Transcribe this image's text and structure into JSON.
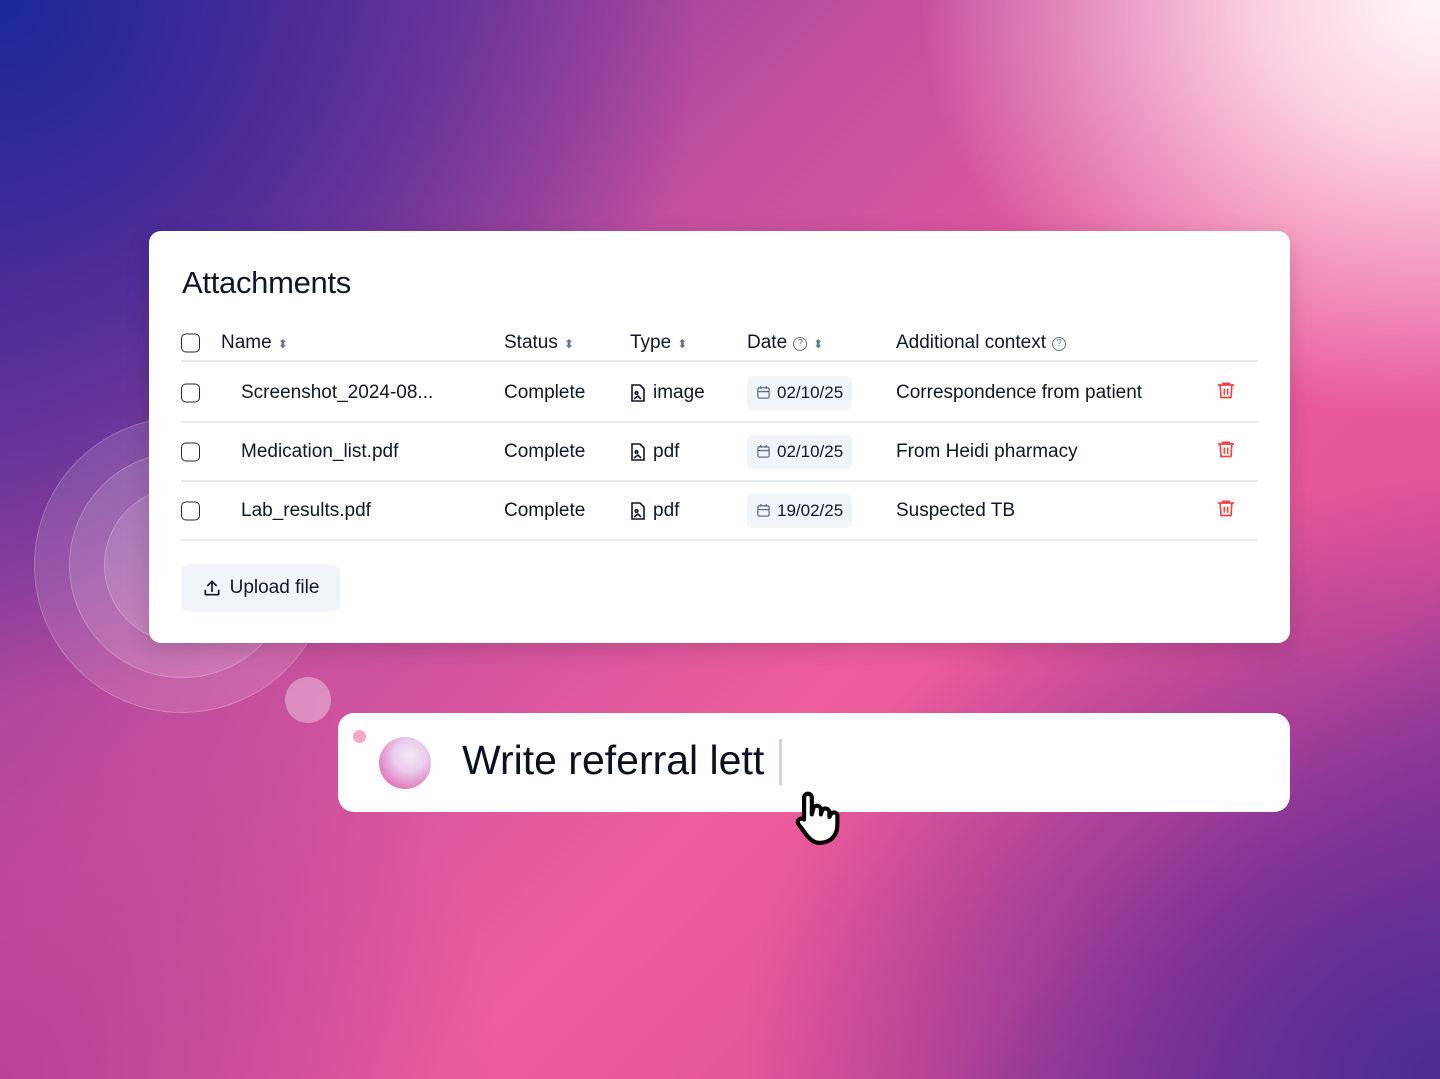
{
  "card": {
    "title": "Attachments",
    "headers": {
      "name": "Name",
      "status": "Status",
      "type": "Type",
      "date": "Date",
      "context": "Additional context"
    },
    "rows": [
      {
        "name": "Screenshot_2024-08...",
        "status": "Complete",
        "type": "image",
        "date": "02/10/25",
        "context": "Correspondence from patient"
      },
      {
        "name": "Medication_list.pdf",
        "status": "Complete",
        "type": "pdf",
        "date": "02/10/25",
        "context": "From Heidi pharmacy"
      },
      {
        "name": "Lab_results.pdf",
        "status": "Complete",
        "type": "pdf",
        "date": "19/02/25",
        "context": "Suspected TB"
      }
    ],
    "upload_label": "Upload file"
  },
  "prompt": {
    "text": "Write referral lett"
  },
  "colors": {
    "delete": "#ef4444",
    "accent": "#ee5d9c"
  }
}
